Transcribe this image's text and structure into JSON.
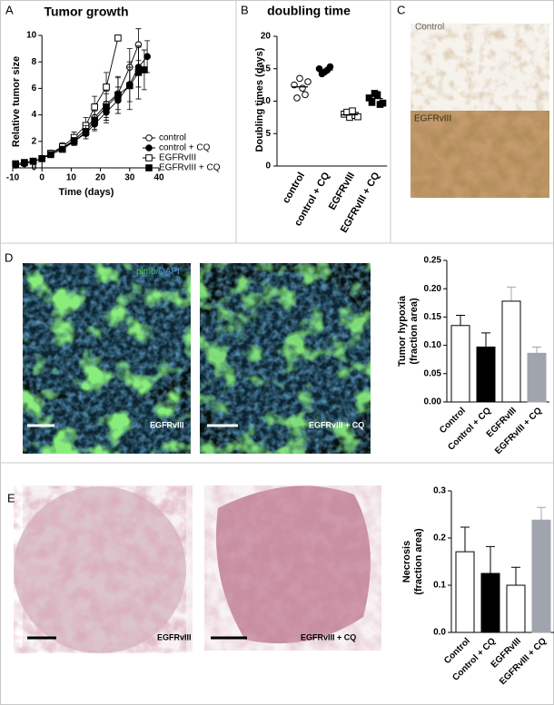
{
  "panel_labels": [
    "A",
    "B",
    "C",
    "D",
    "E"
  ],
  "images": {
    "c_top": "Control",
    "c_bottom": "EGFRvIII",
    "d_stain": [
      "pimo",
      "/DAPI"
    ],
    "d_left": "EGFRvIII",
    "d_right": "EGFRvIII + CQ",
    "e_left": "EGFRvIII",
    "e_right": "EGFRvIII + CQ"
  },
  "chart_data": [
    {
      "type": "line",
      "title": "Tumor growth",
      "xlabel": "Time (days)",
      "ylabel": "Relative tumor size",
      "xlim": [
        -10,
        40
      ],
      "xticks": [
        -10,
        0,
        10,
        20,
        30,
        40
      ],
      "ylim": [
        0,
        10
      ],
      "yticks": [
        0,
        2,
        4,
        6,
        8,
        10
      ],
      "series": [
        {
          "name": "control",
          "color": "#000000",
          "marker": "circle",
          "filled": false,
          "x": [
            -9,
            -6,
            -3,
            0,
            3,
            7,
            11,
            15,
            18,
            22,
            26,
            30,
            33
          ],
          "values": [
            0.3,
            0.4,
            0.5,
            0.7,
            1.1,
            1.5,
            2.1,
            2.9,
            3.8,
            4.8,
            5.6,
            7.6,
            9.3
          ],
          "errors": [
            0.1,
            0.1,
            0.1,
            0.1,
            0.2,
            0.3,
            0.3,
            0.5,
            0.6,
            1.0,
            1.2,
            1.4,
            1.2
          ]
        },
        {
          "name": "control + CQ",
          "color": "#000000",
          "marker": "circle",
          "filled": true,
          "x": [
            -9,
            -6,
            -3,
            0,
            3,
            7,
            11,
            15,
            18,
            22,
            26,
            30,
            33,
            36
          ],
          "values": [
            0.2,
            0.3,
            0.5,
            0.7,
            1.1,
            1.5,
            2.0,
            2.6,
            3.3,
            4.2,
            5.1,
            6.3,
            7.6,
            8.4
          ],
          "errors": [
            0.1,
            0.1,
            0.1,
            0.1,
            0.2,
            0.2,
            0.3,
            0.4,
            0.5,
            0.8,
            1.0,
            1.3,
            1.5,
            1.2
          ]
        },
        {
          "name": "EGFRvIII",
          "color": "#000000",
          "marker": "square",
          "filled": false,
          "x": [
            -9,
            -6,
            -3,
            0,
            3,
            7,
            11,
            15,
            18,
            22,
            26
          ],
          "values": [
            0.3,
            0.4,
            0.5,
            0.7,
            1.1,
            1.6,
            2.3,
            3.2,
            4.6,
            6.1,
            9.8
          ],
          "errors": [
            0.1,
            0.1,
            0.1,
            0.1,
            0.2,
            0.3,
            0.4,
            0.6,
            0.8,
            1.1,
            0.2
          ]
        },
        {
          "name": "EGFRvIII + CQ",
          "color": "#000000",
          "marker": "square",
          "filled": true,
          "x": [
            -9,
            -6,
            -3,
            0,
            3,
            7,
            11,
            15,
            18,
            22,
            26,
            30,
            33,
            35
          ],
          "values": [
            0.3,
            0.4,
            0.5,
            0.7,
            1.0,
            1.4,
            2.0,
            2.7,
            3.6,
            4.6,
            5.5,
            6.2,
            7.2,
            7.4
          ],
          "errors": [
            0.1,
            0.1,
            0.1,
            0.1,
            0.2,
            0.2,
            0.3,
            0.5,
            0.7,
            1.0,
            1.4,
            1.8,
            2.0,
            1.5
          ]
        }
      ]
    },
    {
      "type": "dot",
      "title": "doubling time",
      "ylabel": "Doubling times (days)",
      "ylim": [
        0,
        20
      ],
      "yticks": [
        0,
        5,
        10,
        15,
        20
      ],
      "categories": [
        "control",
        "control + CQ",
        "EGFRvIII",
        "EGFRvIII + CQ"
      ],
      "markers": [
        "circle",
        "circle",
        "square",
        "square"
      ],
      "filled": [
        false,
        true,
        false,
        true
      ],
      "points": [
        [
          12.5,
          13.5,
          11,
          10.5,
          12,
          13
        ],
        [
          15,
          14.5,
          15.3,
          14.2,
          14.8
        ],
        [
          8,
          7.5,
          7.8,
          8.3,
          8.5,
          7.6
        ],
        [
          10.5,
          11.2,
          9.5,
          9.8,
          11,
          9.7
        ]
      ],
      "means": [
        12.2,
        14.8,
        7.9,
        10.4
      ]
    },
    {
      "type": "bar",
      "ylabel": [
        "Tumor hypoxia",
        "(fraction area)"
      ],
      "ylim": [
        0,
        0.25
      ],
      "yticks": [
        {
          "value": 0,
          "label": "0.00"
        },
        0.05,
        {
          "value": 0.1,
          "label": "0.10"
        },
        0.15,
        {
          "value": 0.2,
          "label": "0.20"
        },
        0.25
      ],
      "categories": [
        "Control",
        "Control + CQ",
        "EGFRvIII",
        "EGFRvIII + CQ"
      ],
      "values": [
        0.135,
        0.097,
        0.178,
        0.086
      ],
      "errors": [
        0.018,
        0.025,
        0.025,
        0.011
      ],
      "colors": [
        "#ffffff",
        "#000000",
        "#ffffff",
        "#a0a4ac"
      ]
    },
    {
      "type": "bar",
      "ylabel": [
        "Necrosis",
        "(fraction area)"
      ],
      "ylim": [
        0,
        0.3
      ],
      "yticks": [
        {
          "value": 0,
          "label": "0.0"
        },
        0.1,
        0.2,
        0.3
      ],
      "categories": [
        "Control",
        "Control + CQ",
        "EGFRvIII",
        "EGFRvIII + CQ"
      ],
      "values": [
        0.171,
        0.125,
        0.1,
        0.238
      ],
      "errors": [
        0.052,
        0.057,
        0.038,
        0.027
      ],
      "colors": [
        "#ffffff",
        "#000000",
        "#ffffff",
        "#a0a4ac"
      ]
    }
  ]
}
